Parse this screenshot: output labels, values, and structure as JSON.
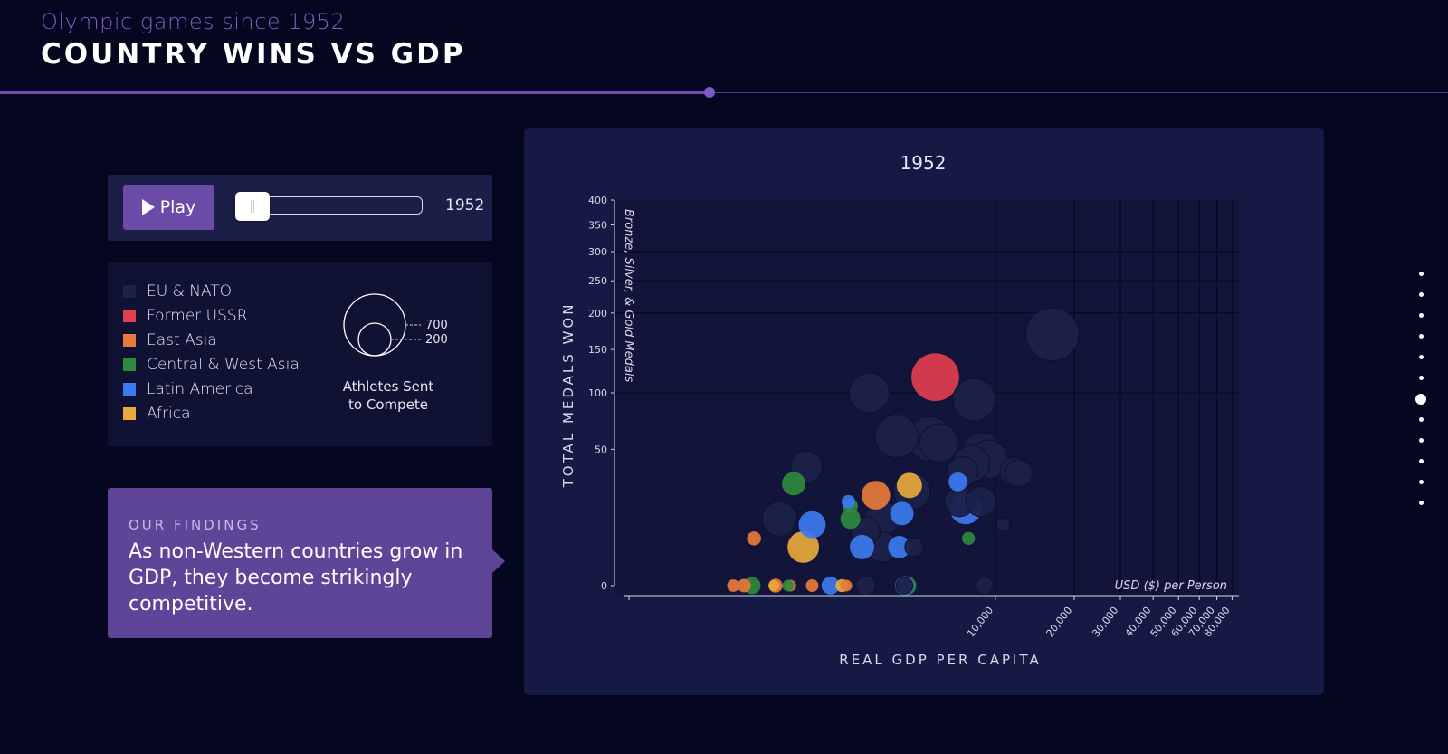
{
  "header": {
    "kicker": "Olympic games since 1952",
    "title": "COUNTRY WINS VS GDP"
  },
  "controls": {
    "play_label": "Play",
    "year": "1952",
    "slider_value": 0
  },
  "legend": {
    "items": [
      {
        "label": "EU & NATO",
        "color": "#1b2148"
      },
      {
        "label": "Former USSR",
        "color": "#e23e4e"
      },
      {
        "label": "East Asia",
        "color": "#e87a3b"
      },
      {
        "label": "Central & West Asia",
        "color": "#2f8a3e"
      },
      {
        "label": "Latin America",
        "color": "#3b7bef"
      },
      {
        "label": "Africa",
        "color": "#e9a93c"
      }
    ],
    "size_values": [
      "700",
      "200"
    ],
    "size_caption_line1": "Athletes Sent",
    "size_caption_line2": "to Compete"
  },
  "findings": {
    "kicker": "OUR FINDINGS",
    "text": "As non-Western countries grow in GDP, they become strikingly competitive."
  },
  "nav": {
    "count": 12,
    "active_index": 6
  },
  "chart_data": {
    "type": "scatter",
    "title": "1952",
    "xlabel": "REAL GDP PER CAPITA",
    "ylabel": "TOTAL MEDALS WON",
    "ylabel_secondary": "Bronze, Silver, & Gold Medals",
    "x_unit_note": "USD ($) per Person",
    "x_scale": "log",
    "y_scale": "sqrt",
    "xlim": [
      400,
      85000
    ],
    "ylim": [
      0,
      400
    ],
    "x_ticks": [
      10000,
      20000,
      30000,
      40000,
      50000,
      60000,
      70000,
      80000
    ],
    "x_tick_labels": [
      "10,000",
      "20,000",
      "30,000",
      "40,000",
      "50,000",
      "60,000",
      "70,000",
      "80,000"
    ],
    "y_ticks": [
      0,
      50,
      100,
      150,
      200,
      250,
      300,
      350,
      400
    ],
    "grid": true,
    "series_colors": {
      "EU & NATO": "#1b2148",
      "Former USSR": "#e23e4e",
      "East Asia": "#e87a3b",
      "Central & West Asia": "#2f8a3e",
      "Latin America": "#3b7bef",
      "Africa": "#e9a93c"
    },
    "points": [
      {
        "region": "EU & NATO",
        "gdp": 16500,
        "medals": 170,
        "athletes": 640
      },
      {
        "region": "EU & NATO",
        "gdp": 3300,
        "medals": 100,
        "athletes": 330
      },
      {
        "region": "EU & NATO",
        "gdp": 8300,
        "medals": 93,
        "athletes": 380
      },
      {
        "region": "EU & NATO",
        "gdp": 4200,
        "medals": 60,
        "athletes": 390
      },
      {
        "region": "EU & NATO",
        "gdp": 5600,
        "medals": 58,
        "athletes": 420
      },
      {
        "region": "EU & NATO",
        "gdp": 6100,
        "medals": 55,
        "athletes": 300
      },
      {
        "region": "EU & NATO",
        "gdp": 8900,
        "medals": 48,
        "athletes": 310
      },
      {
        "region": "EU & NATO",
        "gdp": 9400,
        "medals": 43,
        "athletes": 300
      },
      {
        "region": "EU & NATO",
        "gdp": 8100,
        "medals": 40,
        "athletes": 260
      },
      {
        "region": "EU & NATO",
        "gdp": 7500,
        "medals": 35,
        "athletes": 160
      },
      {
        "region": "EU & NATO",
        "gdp": 11800,
        "medals": 35,
        "athletes": 140
      },
      {
        "region": "EU & NATO",
        "gdp": 12300,
        "medals": 34,
        "athletes": 120
      },
      {
        "region": "EU & NATO",
        "gdp": 1900,
        "medals": 38,
        "athletes": 180
      },
      {
        "region": "EU & NATO",
        "gdp": 4800,
        "medals": 24,
        "athletes": 270
      },
      {
        "region": "EU & NATO",
        "gdp": 7300,
        "medals": 19,
        "athletes": 160
      },
      {
        "region": "EU & NATO",
        "gdp": 8800,
        "medals": 19,
        "athletes": 160
      },
      {
        "region": "EU & NATO",
        "gdp": 1500,
        "medals": 12,
        "athletes": 230
      },
      {
        "region": "EU & NATO",
        "gdp": 3700,
        "medals": 12,
        "athletes": 230
      },
      {
        "region": "EU & NATO",
        "gdp": 3200,
        "medals": 8,
        "athletes": 140
      },
      {
        "region": "EU & NATO",
        "gdp": 3700,
        "medals": 4,
        "athletes": 160
      },
      {
        "region": "EU & NATO",
        "gdp": 4900,
        "medals": 4,
        "athletes": 40
      },
      {
        "region": "EU & NATO",
        "gdp": 10700,
        "medals": 10,
        "athletes": 12
      },
      {
        "region": "EU & NATO",
        "gdp": 3200,
        "medals": 0,
        "athletes": 45
      },
      {
        "region": "EU & NATO",
        "gdp": 9100,
        "medals": 0,
        "athletes": 30
      },
      {
        "region": "EU & NATO",
        "gdp": 4500,
        "medals": 0,
        "athletes": 28
      },
      {
        "region": "Former USSR",
        "gdp": 5900,
        "medals": 117,
        "athletes": 500
      },
      {
        "region": "East Asia",
        "gdp": 3500,
        "medals": 22,
        "athletes": 140
      },
      {
        "region": "East Asia",
        "gdp": 1200,
        "medals": 6,
        "athletes": 14
      },
      {
        "region": "East Asia",
        "gdp": 1100,
        "medals": 0,
        "athletes": 12
      },
      {
        "region": "East Asia",
        "gdp": 1000,
        "medals": 0,
        "athletes": 8
      },
      {
        "region": "East Asia",
        "gdp": 1450,
        "medals": 0,
        "athletes": 14
      },
      {
        "region": "East Asia",
        "gdp": 1650,
        "medals": 0,
        "athletes": 6
      },
      {
        "region": "East Asia",
        "gdp": 2000,
        "medals": 0,
        "athletes": 9
      },
      {
        "region": "East Asia",
        "gdp": 2700,
        "medals": 0,
        "athletes": 6
      },
      {
        "region": "Central & West Asia",
        "gdp": 1700,
        "medals": 28,
        "athletes": 80
      },
      {
        "region": "Central & West Asia",
        "gdp": 2800,
        "medals": 17,
        "athletes": 18
      },
      {
        "region": "Central & West Asia",
        "gdp": 2800,
        "medals": 12,
        "athletes": 50
      },
      {
        "region": "Central & West Asia",
        "gdp": 7900,
        "medals": 6,
        "athletes": 10
      },
      {
        "region": "Central & West Asia",
        "gdp": 1180,
        "medals": 0,
        "athletes": 30
      },
      {
        "region": "Central & West Asia",
        "gdp": 1620,
        "medals": 0,
        "athletes": 6
      },
      {
        "region": "Central & West Asia",
        "gdp": 4600,
        "medals": 0,
        "athletes": 40
      },
      {
        "region": "Latin America",
        "gdp": 2750,
        "medals": 19,
        "athletes": 12
      },
      {
        "region": "Latin America",
        "gdp": 7200,
        "medals": 29,
        "athletes": 40
      },
      {
        "region": "Latin America",
        "gdp": 4400,
        "medals": 14,
        "athletes": 80
      },
      {
        "region": "Latin America",
        "gdp": 7700,
        "medals": 16,
        "athletes": 180
      },
      {
        "region": "Latin America",
        "gdp": 2000,
        "medals": 10,
        "athletes": 120
      },
      {
        "region": "Latin America",
        "gdp": 3100,
        "medals": 4,
        "athletes": 90
      },
      {
        "region": "Latin America",
        "gdp": 4300,
        "medals": 4,
        "athletes": 70
      },
      {
        "region": "Latin America",
        "gdp": 2350,
        "medals": 0,
        "athletes": 35
      },
      {
        "region": "Latin America",
        "gdp": 4500,
        "medals": 0,
        "athletes": 40
      },
      {
        "region": "Africa",
        "gdp": 4700,
        "medals": 27,
        "athletes": 100
      },
      {
        "region": "Africa",
        "gdp": 1850,
        "medals": 4,
        "athletes": 180
      },
      {
        "region": "Africa",
        "gdp": 2600,
        "medals": 0,
        "athletes": 10
      },
      {
        "region": "Africa",
        "gdp": 1430,
        "medals": 0,
        "athletes": 4
      }
    ]
  }
}
